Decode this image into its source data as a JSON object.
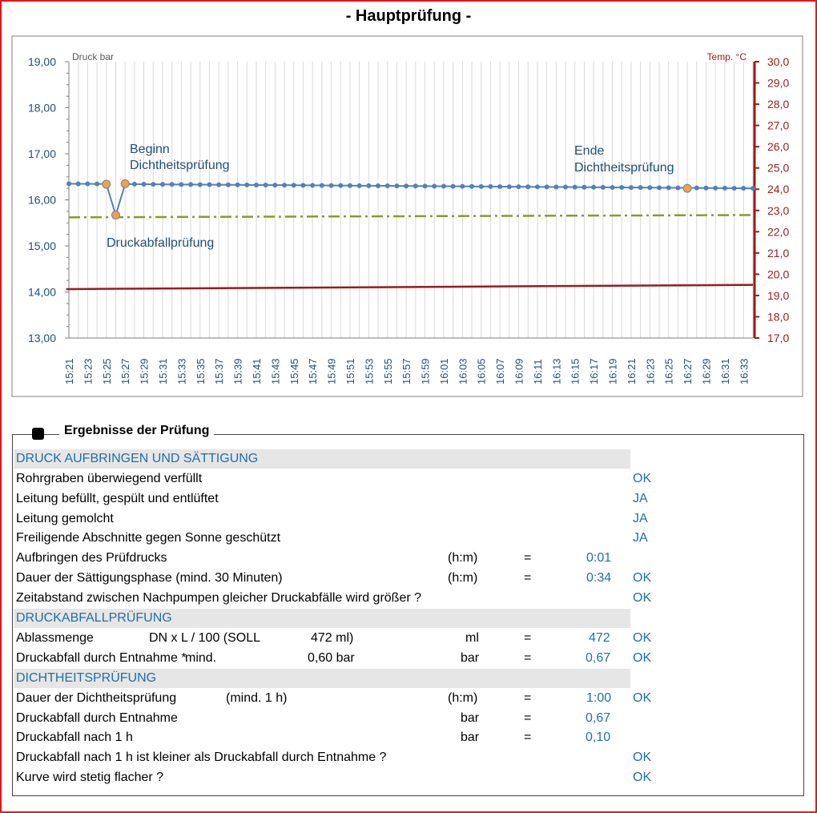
{
  "title": "- Hauptprüfung -",
  "chart_data": {
    "type": "line",
    "title": "- Hauptprüfung -",
    "ylabel": "Druck bar",
    "y2label": "Temp. °C",
    "ylim": [
      13.0,
      19.0
    ],
    "y2lim": [
      17.0,
      30.0
    ],
    "yticks": [
      "13,00",
      "14,00",
      "15,00",
      "16,00",
      "17,00",
      "18,00",
      "19,00"
    ],
    "y2ticks": [
      "17,0",
      "18,0",
      "19,0",
      "20,0",
      "21,0",
      "22,0",
      "23,0",
      "24,0",
      "25,0",
      "26,0",
      "27,0",
      "28,0",
      "29,0",
      "30,0"
    ],
    "x": [
      "15:21",
      "15:23",
      "15:25",
      "15:27",
      "15:29",
      "15:31",
      "15:33",
      "15:35",
      "15:37",
      "15:39",
      "15:41",
      "15:43",
      "15:45",
      "15:47",
      "15:49",
      "15:51",
      "15:53",
      "15:55",
      "15:57",
      "15:59",
      "16:01",
      "16:03",
      "16:05",
      "16:07",
      "16:09",
      "16:11",
      "16:13",
      "16:15",
      "16:17",
      "16:19",
      "16:21",
      "16:23",
      "16:25",
      "16:27",
      "16:29",
      "16:31",
      "16:33"
    ],
    "grid": true,
    "series": [
      {
        "role": "pressure",
        "axis": "left",
        "color": "#4f81bd",
        "x_start": "15:21",
        "x_end": "16:34",
        "values_start": 16.35,
        "values_end": 16.25,
        "dip": {
          "before": "15:25",
          "min": "15:26",
          "after": "15:27",
          "value": 15.67
        }
      },
      {
        "role": "setpoint",
        "axis": "left",
        "color": "#8a9a2a",
        "style": "dash-dot",
        "values_start": 15.62,
        "values_end": 15.67
      },
      {
        "role": "temperature",
        "axis": "right",
        "color": "#9b1b1b",
        "values_start": 19.3,
        "values_end": 19.5
      }
    ],
    "markers": [
      {
        "time": "15:25",
        "value": 16.34
      },
      {
        "time": "15:26",
        "value": 15.67
      },
      {
        "time": "15:27",
        "value": 16.35
      },
      {
        "time": "16:27",
        "value": 16.25
      }
    ],
    "annotations": [
      {
        "text": "Beginn\nDichtheitsprüfung"
      },
      {
        "text": "Ende\nDichtheitsprüfung"
      },
      {
        "text": "Druckabfallprüfung"
      }
    ]
  },
  "results": {
    "heading": "Ergebnisse der Prüfung",
    "sections": [
      {
        "title": "DRUCK AUFBRINGEN UND SÄTTIGUNG"
      },
      {
        "title": "DRUCKABFALLPRÜFUNG"
      },
      {
        "title": "DICHTHEITSPRÜFUNG"
      }
    ],
    "rows": [
      {
        "label": "Rohrgraben überwiegend verfüllt",
        "status": "OK"
      },
      {
        "label": "Leitung befüllt, gespült und entlüftet",
        "status": "JA"
      },
      {
        "label": "Leitung gemolcht",
        "status": "JA"
      },
      {
        "label": "Freiligende Abschnitte gegen Sonne geschützt",
        "status": "JA"
      },
      {
        "label": "Aufbringen des Prüfdrucks",
        "unit": "(h:m)",
        "eq": "=",
        "value": "0:01"
      },
      {
        "label": "Dauer der Sättigungsphase (mind. 30 Minuten)",
        "unit": "(h:m)",
        "eq": "=",
        "value": "0:34",
        "status": "OK"
      },
      {
        "label": "Zeitabstand zwischen Nachpumpen gleicher Druckabfälle wird größer ?",
        "status": "OK"
      },
      {
        "label": "Ablassmenge",
        "formula": "DN x L / 100  (SOLL",
        "soll": "472 ml)",
        "unit": "ml",
        "eq": "=",
        "value": "472",
        "status": "OK"
      },
      {
        "label": "Druckabfall durch Entnahme *",
        "formula": "mind.",
        "soll": "0,60 bar",
        "unit": "bar",
        "eq": "=",
        "value": "0,67",
        "status": "OK"
      },
      {
        "label": "Dauer der Dichtheitsprüfung",
        "formula": "(mind. 1 h)",
        "unit": "(h:m)",
        "eq": "=",
        "value": "1:00",
        "status": "OK"
      },
      {
        "label": "Druckabfall durch Entnahme",
        "unit": "bar",
        "eq": "=",
        "value": "0,67"
      },
      {
        "label": "Druckabfall nach 1 h",
        "unit": "bar",
        "eq": "=",
        "value": "0,10"
      },
      {
        "label": "Druckabfall nach 1 h ist kleiner als Druckabfall durch Entnahme ?",
        "status": "OK"
      },
      {
        "label": "Kurve wird stetig flacher ?",
        "status": "OK"
      }
    ]
  }
}
